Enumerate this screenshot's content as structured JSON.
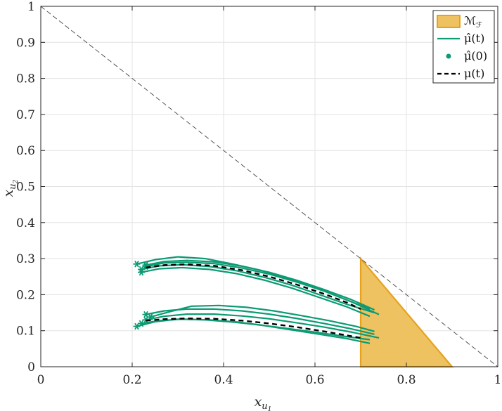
{
  "chart_data": {
    "type": "line",
    "xlabel": "x_{u_1}",
    "ylabel": "x_{u_2}",
    "xlim": [
      0,
      1
    ],
    "ylim": [
      0,
      1
    ],
    "xticks": [
      "0",
      "0.2",
      "0.4",
      "0.6",
      "0.8",
      "1"
    ],
    "yticks": [
      "0",
      "0.1",
      "0.2",
      "0.3",
      "0.4",
      "0.5",
      "0.6",
      "0.7",
      "0.8",
      "0.9",
      "1"
    ],
    "grid": true,
    "legend_position": "top-right",
    "colors": {
      "region_fill": "#EFC261",
      "region_edge": "#E6A21E",
      "trajectory": "#0C9B74",
      "mean": "#000000",
      "boundary": "#444444"
    },
    "boundary_line": {
      "x": [
        0,
        1
      ],
      "y": [
        1,
        0
      ]
    },
    "region": {
      "x": [
        0.7,
        0.7,
        0.9,
        0.7
      ],
      "y": [
        0,
        0.3,
        0,
        0
      ]
    },
    "series": [
      {
        "name": "μ(t)",
        "style": "dashed",
        "x": [
          0.23,
          0.27,
          0.32,
          0.38,
          0.44,
          0.5,
          0.56,
          0.62,
          0.67,
          0.7
        ],
        "y": [
          0.275,
          0.282,
          0.284,
          0.28,
          0.268,
          0.25,
          0.228,
          0.202,
          0.178,
          0.16
        ]
      },
      {
        "name": "μ(t)",
        "style": "dashed",
        "x": [
          0.23,
          0.27,
          0.32,
          0.38,
          0.44,
          0.5,
          0.56,
          0.62,
          0.67,
          0.7
        ],
        "y": [
          0.128,
          0.132,
          0.134,
          0.133,
          0.128,
          0.12,
          0.11,
          0.098,
          0.087,
          0.08
        ]
      }
    ],
    "trajectories": [
      {
        "x": [
          0.21,
          0.25,
          0.3,
          0.36,
          0.42,
          0.48,
          0.54,
          0.6,
          0.66,
          0.72
        ],
        "y": [
          0.285,
          0.297,
          0.305,
          0.3,
          0.285,
          0.268,
          0.245,
          0.22,
          0.19,
          0.16
        ]
      },
      {
        "x": [
          0.22,
          0.26,
          0.31,
          0.37,
          0.43,
          0.49,
          0.55,
          0.61,
          0.67,
          0.73
        ],
        "y": [
          0.27,
          0.28,
          0.283,
          0.278,
          0.266,
          0.248,
          0.226,
          0.2,
          0.173,
          0.15
        ]
      },
      {
        "x": [
          0.23,
          0.27,
          0.32,
          0.38,
          0.44,
          0.5,
          0.56,
          0.62,
          0.68,
          0.74
        ],
        "y": [
          0.278,
          0.288,
          0.29,
          0.286,
          0.274,
          0.257,
          0.235,
          0.21,
          0.18,
          0.145
        ]
      },
      {
        "x": [
          0.22,
          0.26,
          0.31,
          0.37,
          0.43,
          0.49,
          0.55,
          0.61,
          0.67,
          0.72
        ],
        "y": [
          0.262,
          0.272,
          0.275,
          0.27,
          0.258,
          0.24,
          0.218,
          0.192,
          0.166,
          0.14
        ]
      },
      {
        "x": [
          0.23,
          0.27,
          0.32,
          0.38,
          0.44,
          0.5,
          0.56,
          0.62,
          0.68,
          0.73
        ],
        "y": [
          0.282,
          0.292,
          0.295,
          0.291,
          0.279,
          0.262,
          0.24,
          0.214,
          0.186,
          0.158
        ]
      },
      {
        "x": [
          0.21,
          0.25,
          0.3,
          0.36,
          0.42,
          0.48,
          0.54,
          0.6,
          0.66,
          0.72
        ],
        "y": [
          0.112,
          0.125,
          0.132,
          0.13,
          0.124,
          0.116,
          0.106,
          0.096,
          0.085,
          0.075
        ]
      },
      {
        "x": [
          0.23,
          0.27,
          0.32,
          0.38,
          0.44,
          0.5,
          0.56,
          0.62,
          0.68,
          0.73
        ],
        "y": [
          0.145,
          0.155,
          0.16,
          0.16,
          0.155,
          0.146,
          0.134,
          0.12,
          0.105,
          0.09
        ]
      },
      {
        "x": [
          0.22,
          0.26,
          0.31,
          0.37,
          0.43,
          0.49,
          0.55,
          0.61,
          0.67,
          0.72
        ],
        "y": [
          0.12,
          0.128,
          0.132,
          0.13,
          0.124,
          0.114,
          0.102,
          0.09,
          0.078,
          0.065
        ]
      },
      {
        "x": [
          0.23,
          0.27,
          0.32,
          0.38,
          0.44,
          0.5,
          0.56,
          0.62,
          0.68,
          0.74
        ],
        "y": [
          0.13,
          0.14,
          0.146,
          0.146,
          0.141,
          0.133,
          0.122,
          0.11,
          0.096,
          0.08
        ]
      },
      {
        "x": [
          0.24,
          0.28,
          0.33,
          0.39,
          0.45,
          0.51,
          0.57,
          0.63,
          0.69,
          0.73
        ],
        "y": [
          0.138,
          0.152,
          0.168,
          0.17,
          0.165,
          0.155,
          0.142,
          0.128,
          0.112,
          0.098
        ]
      }
    ],
    "legend": [
      {
        "label": "ℳ_ℱ",
        "marker": "patch"
      },
      {
        "label": "μ̂(t)",
        "marker": "line"
      },
      {
        "label": "μ̂(0)",
        "marker": "dot"
      },
      {
        "label": "μ(t)",
        "marker": "dashed"
      }
    ]
  }
}
